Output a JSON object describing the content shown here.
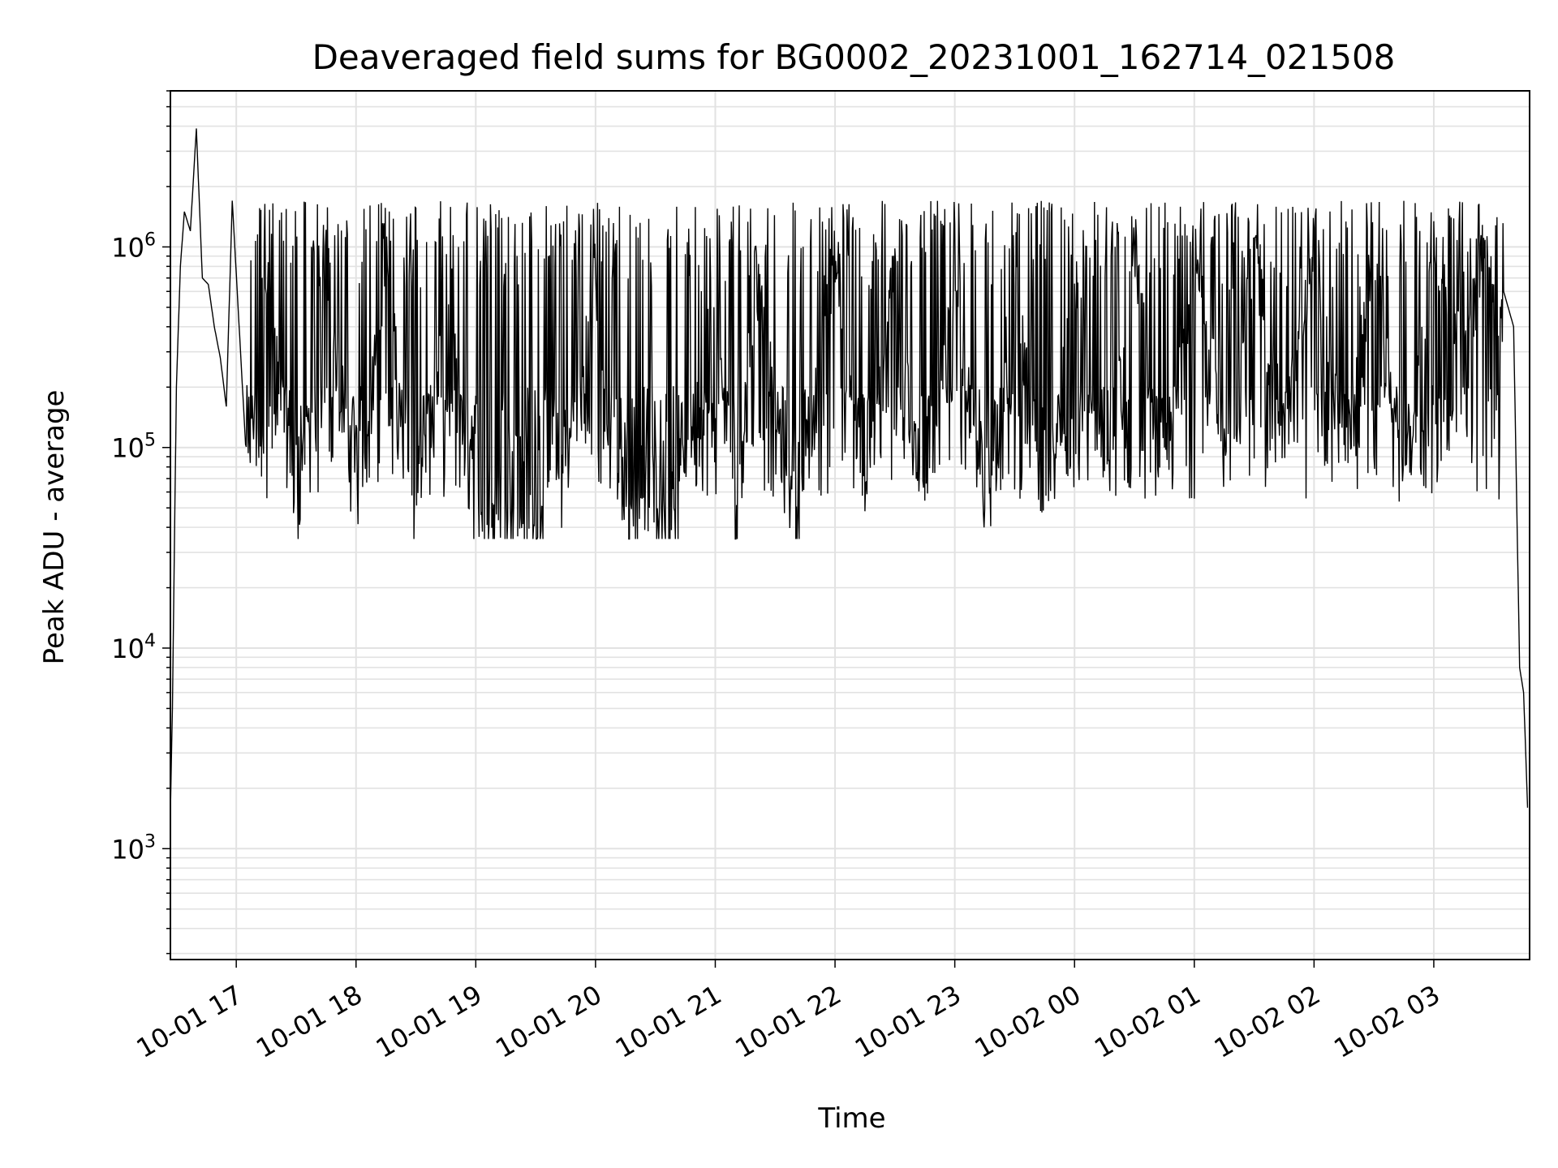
{
  "chart_data": {
    "type": "line",
    "title": "Deaveraged field sums for BG0002_20231001_162714_021508",
    "xlabel": "Time",
    "ylabel": "Peak ADU - average",
    "yscale": "log",
    "ylim": [
      280,
      6000000
    ],
    "xlim": [
      "2023-10-01 16:27",
      "2023-10-02 03:48"
    ],
    "grid": true,
    "line_color": "#000000",
    "x_ticks": [
      "10-01 17",
      "10-01 18",
      "10-01 19",
      "10-01 20",
      "10-01 21",
      "10-01 22",
      "10-01 23",
      "10-02 00",
      "10-02 01",
      "10-02 02",
      "10-02 03"
    ],
    "y_ticks": [
      {
        "value": 1000,
        "base": "10",
        "exp": "3"
      },
      {
        "value": 10000,
        "base": "10",
        "exp": "4"
      },
      {
        "value": 100000,
        "base": "10",
        "exp": "5"
      },
      {
        "value": 1000000,
        "base": "10",
        "exp": "6"
      }
    ],
    "series": [
      {
        "x": [
          "2023-10-01 16:27",
          "2023-10-01 16:28",
          "2023-10-01 16:30",
          "2023-10-01 16:32",
          "2023-10-01 16:34",
          "2023-10-01 16:37",
          "2023-10-01 16:40",
          "2023-10-01 16:43",
          "2023-10-01 16:46",
          "2023-10-01 16:49",
          "2023-10-01 16:52",
          "2023-10-01 16:55",
          "2023-10-01 16:58",
          "2023-10-01 17:05",
          "2023-10-01 17:15",
          "2023-10-01 17:30",
          "2023-10-01 17:45",
          "2023-10-01 18:00",
          "2023-10-01 18:15",
          "2023-10-01 18:30",
          "2023-10-01 18:45",
          "2023-10-01 19:00",
          "2023-10-01 19:15",
          "2023-10-01 19:30",
          "2023-10-01 19:45",
          "2023-10-01 20:00",
          "2023-10-01 20:10",
          "2023-10-01 20:20",
          "2023-10-01 20:40",
          "2023-10-01 21:00",
          "2023-10-01 21:10",
          "2023-10-01 21:20",
          "2023-10-01 21:40",
          "2023-10-01 22:00",
          "2023-10-01 22:15",
          "2023-10-01 22:30",
          "2023-10-01 22:45",
          "2023-10-01 23:00",
          "2023-10-01 23:15",
          "2023-10-01 23:30",
          "2023-10-01 23:45",
          "2023-10-02 00:00",
          "2023-10-02 00:15",
          "2023-10-02 00:30",
          "2023-10-02 00:45",
          "2023-10-02 01:00",
          "2023-10-02 01:15",
          "2023-10-02 01:30",
          "2023-10-02 01:45",
          "2023-10-02 02:00",
          "2023-10-02 02:15",
          "2023-10-02 02:30",
          "2023-10-02 02:45",
          "2023-10-02 03:00",
          "2023-10-02 03:15",
          "2023-10-02 03:25",
          "2023-10-02 03:30",
          "2023-10-02 03:35",
          "2023-10-02 03:40",
          "2023-10-02 03:43",
          "2023-10-02 03:45",
          "2023-10-02 03:47"
        ],
        "y": [
          1500,
          5000,
          200000,
          800000,
          1500000,
          1200000,
          3900000,
          700000,
          650000,
          400000,
          280000,
          160000,
          1700000,
          90000,
          1400000,
          70000,
          1600000,
          80000,
          1500000,
          65000,
          1300000,
          60000,
          70000,
          55000,
          120000,
          1200000,
          100000,
          70000,
          65000,
          1200000,
          60000,
          1400000,
          55000,
          1500000,
          80000,
          1500000,
          70000,
          1400000,
          60000,
          1300000,
          60000,
          1300000,
          90000,
          1400000,
          120000,
          1500000,
          200000,
          1600000,
          200000,
          1500000,
          150000,
          1500000,
          100000,
          1500000,
          500000,
          1600000,
          1200000,
          600000,
          400000,
          8000,
          6000,
          1600
        ]
      }
    ]
  }
}
